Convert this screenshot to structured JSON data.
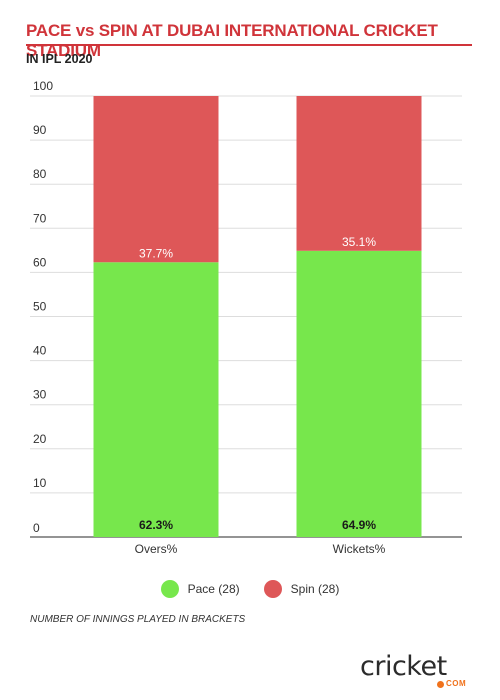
{
  "header": {
    "title": "PACE vs SPIN AT DUBAI INTERNATIONAL CRICKET STADIUM",
    "subtitle": "IN IPL 2020"
  },
  "chart_data": {
    "type": "bar",
    "stacked": true,
    "categories": [
      "Overs%",
      "Wickets%"
    ],
    "series": [
      {
        "name": "Pace (28)",
        "values": [
          62.3,
          64.9
        ],
        "labels": [
          "62.3%",
          "64.9%"
        ],
        "color": "#77e74c"
      },
      {
        "name": "Spin (28)",
        "values": [
          37.7,
          35.1
        ],
        "labels": [
          "37.7%",
          "35.1%"
        ],
        "color": "#de5758"
      }
    ],
    "ylim": [
      0,
      100
    ],
    "yticks": [
      0,
      10,
      20,
      30,
      40,
      50,
      60,
      70,
      80,
      90,
      100
    ],
    "grid": true,
    "legend": "bottom-center"
  },
  "footnote": "NUMBER OF INNINGS PLAYED IN BRACKETS",
  "logo": {
    "wordmark": "cricket",
    "suffix": "COM",
    "accent": "#f0721c"
  }
}
